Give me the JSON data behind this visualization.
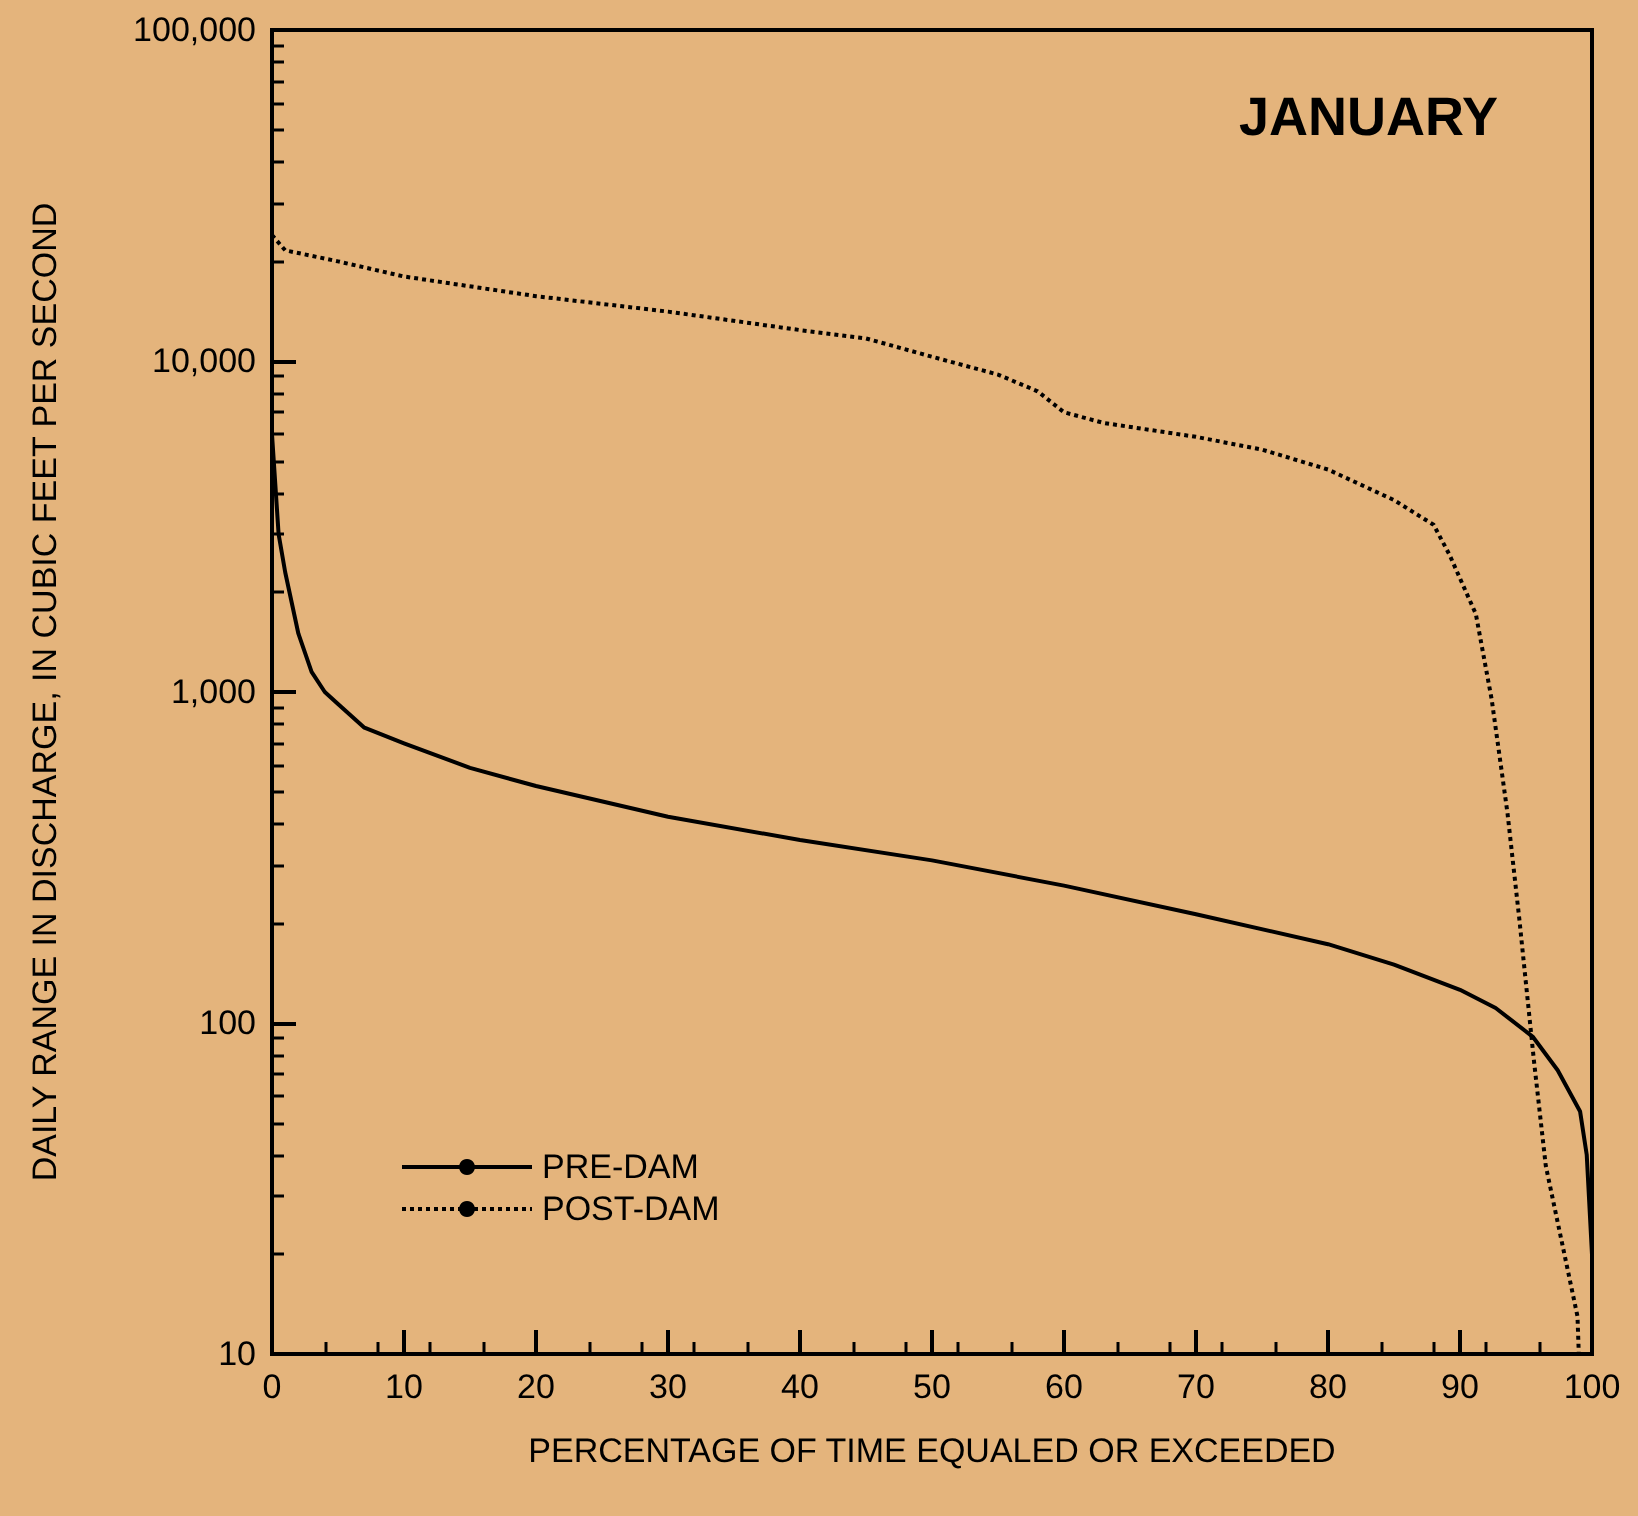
{
  "chart_data": {
    "type": "line",
    "title": "JANUARY",
    "xlabel": "PERCENTAGE OF TIME EQUALED OR EXCEEDED",
    "ylabel": "DAILY RANGE IN DISCHARGE, IN CUBIC FEET PER SECOND",
    "log": "y",
    "grid": false,
    "legend": "bottom left",
    "marker": "none",
    "xlim": [
      0,
      100
    ],
    "xticks": [
      0,
      10,
      20,
      30,
      40,
      50,
      60,
      70,
      80,
      90,
      100
    ],
    "ylim": [
      10,
      100000
    ],
    "yticks": [
      {
        "value": 10,
        "label": "10"
      },
      {
        "value": 100,
        "label": "100"
      },
      {
        "value": 1000,
        "label": "1,000"
      },
      {
        "value": 10000,
        "label": "10,000"
      },
      {
        "value": 100000,
        "label": "100,000"
      }
    ],
    "series": [
      {
        "name": "PRE-DAM",
        "color": "#000000",
        "line_style": "solid",
        "x": [
          0,
          0.5,
          1,
          2,
          3,
          4,
          5,
          7,
          10,
          15,
          20,
          30,
          40,
          50,
          60,
          70,
          80,
          85,
          90,
          92.7,
          95.5,
          97.4,
          99.1,
          99.6,
          100
        ],
        "values": [
          6000,
          3000,
          2300,
          1500,
          1150,
          1000,
          920,
          780,
          700,
          590,
          520,
          420,
          357,
          310,
          260,
          213,
          173,
          150,
          126,
          111,
          91,
          72,
          54,
          40,
          20
        ]
      },
      {
        "name": "POST-DAM",
        "color": "#000000",
        "line_style": "dotted",
        "x": [
          0,
          1,
          5,
          10,
          20,
          30,
          40,
          45,
          50,
          55,
          58,
          60,
          63,
          70,
          75,
          80,
          85,
          88,
          89.2,
          91.2,
          92.4,
          93.6,
          94.5,
          95.6,
          96.5,
          98.9,
          99
        ],
        "values": [
          24000,
          21600,
          20000,
          18000,
          15700,
          14100,
          12400,
          11700,
          10300,
          9100,
          8100,
          7000,
          6500,
          5900,
          5400,
          4700,
          3800,
          3200,
          2600,
          1720,
          950,
          430,
          205,
          77,
          37,
          13,
          10
        ]
      }
    ]
  }
}
